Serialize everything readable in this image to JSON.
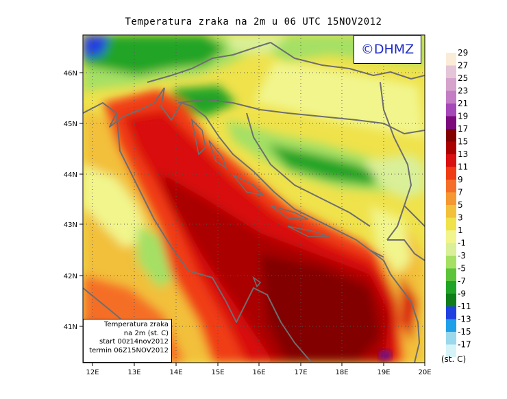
{
  "title": "Temperatura zraka na 2m u 06 UTC 15NOV2012",
  "logo": "©DHMZ",
  "info": {
    "line1": "Temperatura zraka",
    "line2": "na 2m (st. C)",
    "line3": "start 00z14nov2012",
    "line4": "termin 06Z15NOV2012"
  },
  "lat_labels": [
    "46N",
    "45N",
    "44N",
    "43N",
    "42N",
    "41N"
  ],
  "lon_labels": [
    "12E",
    "13E",
    "14E",
    "15E",
    "16E",
    "17E",
    "18E",
    "19E",
    "20E"
  ],
  "legend": {
    "unit": "(st. C)",
    "labels": [
      "29",
      "27",
      "25",
      "23",
      "21",
      "19",
      "17",
      "15",
      "13",
      "11",
      "9",
      "7",
      "5",
      "3",
      "1",
      "-1",
      "-3",
      "-5",
      "-7",
      "-9",
      "-11",
      "-13",
      "-15",
      "-17"
    ],
    "colors": [
      "#fbecd8",
      "#e4c6d8",
      "#d5a3cb",
      "#c47cc5",
      "#a548b8",
      "#7c0a7c",
      "#820000",
      "#aa0000",
      "#d91010",
      "#f03c14",
      "#f56e28",
      "#f59832",
      "#f2c03a",
      "#efe24b",
      "#f1f58c",
      "#d9ef98",
      "#a5e065",
      "#5cc43a",
      "#20a425",
      "#0f7d19",
      "#2040e0",
      "#1ea0e8",
      "#9ad8ec",
      "#d6f4f8"
    ]
  },
  "colors": {
    "logo_text": "#1f2bc6",
    "border_line": "#6e6e6e",
    "sea_warm": "#aa0000"
  }
}
